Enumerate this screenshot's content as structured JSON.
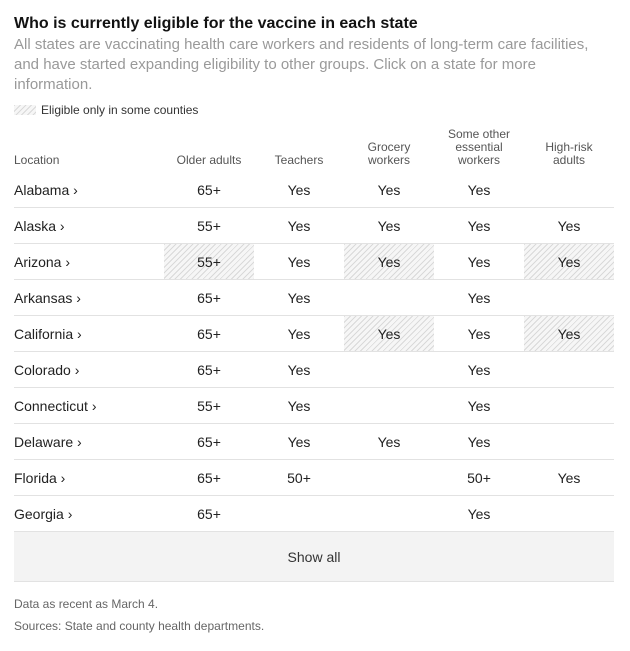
{
  "title": "Who is currently eligible for the vaccine in each state",
  "subtitle": "All states are vaccinating health care workers and residents of long-term care facilities, and have started expanding eligibility to other groups. Click on a state for more information.",
  "legend_label": "Eligible only in some counties",
  "columns": {
    "location": "Location",
    "older": "Older adults",
    "teachers": "Teachers",
    "grocery_1": "Grocery",
    "grocery_2": "workers",
    "other_1": "Some other",
    "other_2": "essential",
    "other_3": "workers",
    "highrisk_1": "High-risk",
    "highrisk_2": "adults"
  },
  "rows": [
    {
      "state": "Alabama ›",
      "older": "65+",
      "teachers": "Yes",
      "grocery": "Yes",
      "other": "Yes",
      "highrisk": ""
    },
    {
      "state": "Alaska ›",
      "older": "55+",
      "teachers": "Yes",
      "grocery": "Yes",
      "other": "Yes",
      "highrisk": "Yes"
    },
    {
      "state": "Arizona ›",
      "older": "55+",
      "teachers": "Yes",
      "grocery": "Yes",
      "other": "Yes",
      "highrisk": "Yes"
    },
    {
      "state": "Arkansas ›",
      "older": "65+",
      "teachers": "Yes",
      "grocery": "",
      "other": "Yes",
      "highrisk": ""
    },
    {
      "state": "California ›",
      "older": "65+",
      "teachers": "Yes",
      "grocery": "Yes",
      "other": "Yes",
      "highrisk": "Yes"
    },
    {
      "state": "Colorado ›",
      "older": "65+",
      "teachers": "Yes",
      "grocery": "",
      "other": "Yes",
      "highrisk": ""
    },
    {
      "state": "Connecticut ›",
      "older": "55+",
      "teachers": "Yes",
      "grocery": "",
      "other": "Yes",
      "highrisk": ""
    },
    {
      "state": "Delaware ›",
      "older": "65+",
      "teachers": "Yes",
      "grocery": "Yes",
      "other": "Yes",
      "highrisk": ""
    },
    {
      "state": "Florida ›",
      "older": "65+",
      "teachers": "50+",
      "grocery": "",
      "other": "50+",
      "highrisk": "Yes"
    },
    {
      "state": "Georgia ›",
      "older": "65+",
      "teachers": "",
      "grocery": "",
      "other": "Yes",
      "highrisk": ""
    }
  ],
  "show_all_label": "Show all",
  "note_date": "Data as recent as March 4.",
  "note_sources": "Sources: State and county health departments."
}
